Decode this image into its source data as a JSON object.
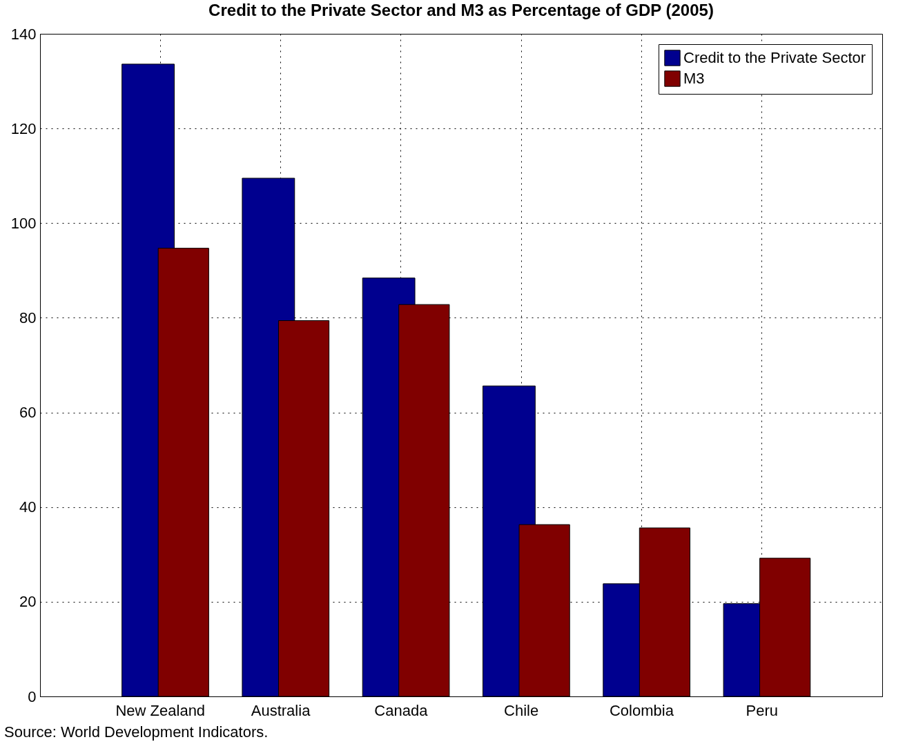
{
  "chart_data": {
    "type": "bar",
    "title": "Credit to the Private Sector and M3 as Percentage of GDP (2005)",
    "categories": [
      "New Zealand",
      "Australia",
      "Canada",
      "Chile",
      "Colombia",
      "Peru"
    ],
    "series": [
      {
        "name": "Credit to the Private Sector",
        "color": "#00008f",
        "values": [
          133.6,
          109.5,
          88.4,
          65.6,
          23.8,
          19.6
        ]
      },
      {
        "name": "M3",
        "color": "#800000",
        "values": [
          94.7,
          79.4,
          82.8,
          36.3,
          35.6,
          29.2
        ]
      }
    ],
    "ylim": [
      0,
      140
    ],
    "yticks": [
      0,
      20,
      40,
      60,
      80,
      100,
      120,
      140
    ],
    "grid": true,
    "legend": "top right",
    "annotations": [
      "Source: World Development Indicators."
    ]
  }
}
